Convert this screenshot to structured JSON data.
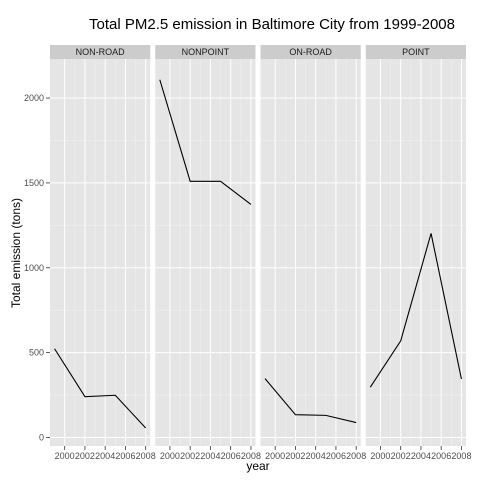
{
  "chart_data": {
    "type": "line",
    "title": "Total PM2.5 emission in Baltimore City from 1999-2008",
    "xlabel": "year",
    "ylabel": "Total emission (tons)",
    "x": [
      1999,
      2002,
      2005,
      2008
    ],
    "xlim": [
      1998.55,
      2008.45
    ],
    "ylim": [
      -50,
      2230
    ],
    "x_ticks": [
      2000,
      2002,
      2004,
      2006,
      2008
    ],
    "x_tick_labels": [
      "2000",
      "2002",
      "2004",
      "2006",
      "2008"
    ],
    "y_ticks": [
      0,
      500,
      1000,
      1500,
      2000
    ],
    "y_tick_labels": [
      "0",
      "500",
      "1000",
      "1500",
      "2000"
    ],
    "grid": true,
    "panel_background": "#e5e5e5",
    "strip_background": "#cccccc",
    "line_color": "#000000",
    "panels": [
      {
        "name": "NON-ROAD",
        "values": [
          522.94,
          240.85,
          248.93,
          55.82
        ]
      },
      {
        "name": "NONPOINT",
        "values": [
          2107.63,
          1509.5,
          1509.5,
          1373.21
        ]
      },
      {
        "name": "ON-ROAD",
        "values": [
          346.82,
          134.31,
          130.43,
          88.28
        ]
      },
      {
        "name": "POINT",
        "values": [
          296.8,
          569.26,
          1202.49,
          344.98
        ]
      }
    ]
  }
}
